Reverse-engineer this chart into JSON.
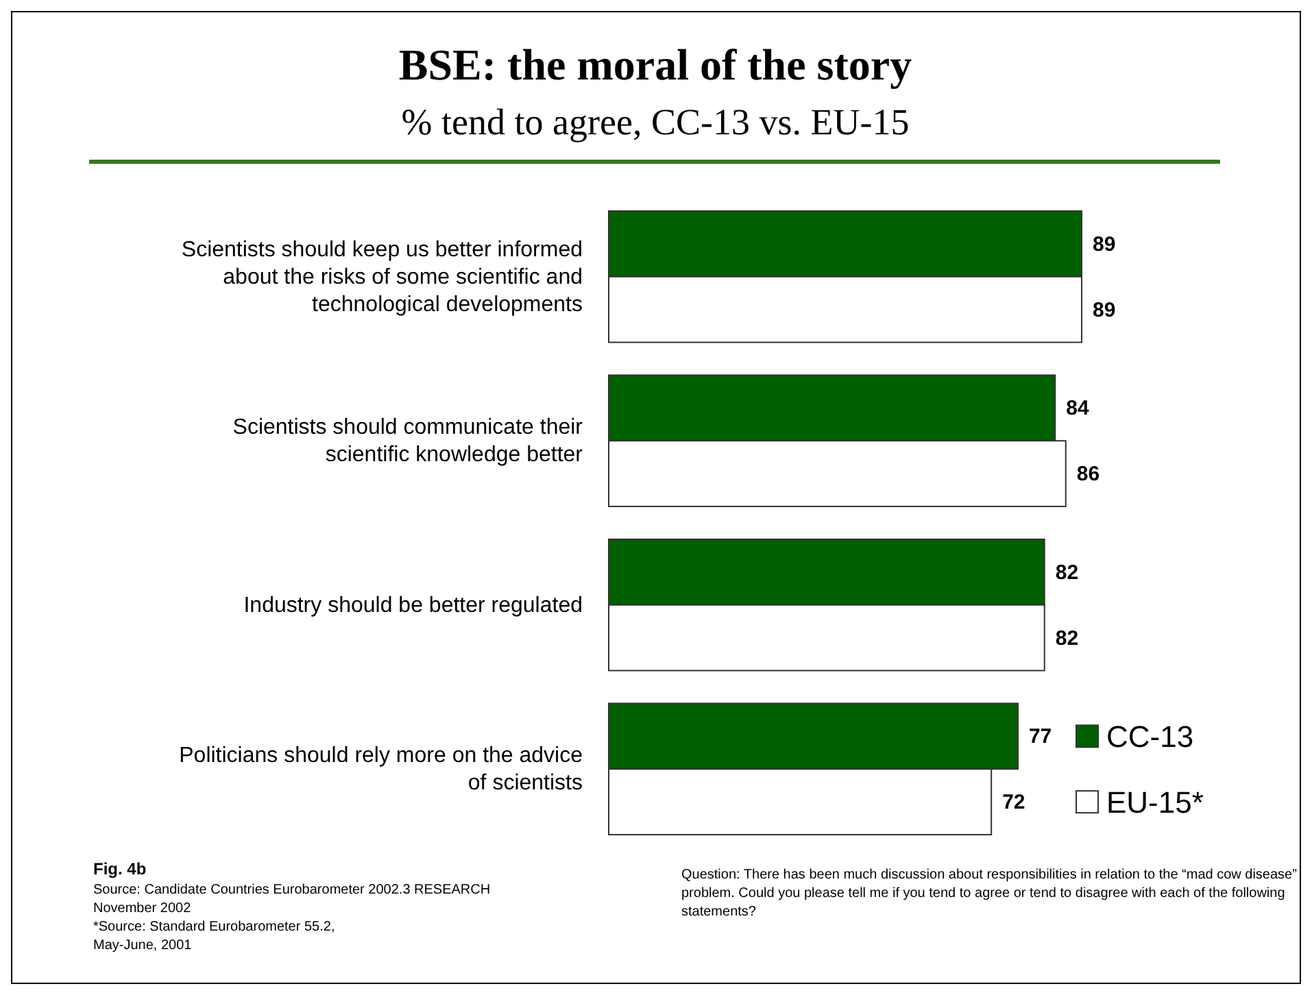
{
  "chart_data": {
    "type": "bar",
    "orientation": "horizontal",
    "title": "BSE: the moral of the story",
    "subtitle": "% tend to agree, CC-13 vs. EU-15",
    "categories": [
      "Scientists should keep us better informed about the risks of some scientific and technological developments",
      "Scientists should communicate their scientific knowledge better",
      "Industry should be better regulated",
      "Politicians should rely more on the advice of scientists"
    ],
    "series": [
      {
        "name": "CC-13",
        "color": "#006000",
        "values": [
          89,
          84,
          82,
          77
        ]
      },
      {
        "name": "EU-15*",
        "color": "#ffffff",
        "values": [
          89,
          86,
          82,
          72
        ]
      }
    ],
    "data_labels": true,
    "legend": "bottom right",
    "annotations": [
      "Fig. 4b",
      "Source: Candidate Countries Eurobarometer 2002.3 RESEARCH\nNovember  2002",
      "*Source: Standard Eurobarometer 55.2,\nMay-June, 2001",
      "Question:  There has been much discussion about responsibilities in relation to the “mad cow disease”\nproblem. Could you please tell me if you tend to agree or tend to disagree with each of the following\nstatements?"
    ]
  }
}
